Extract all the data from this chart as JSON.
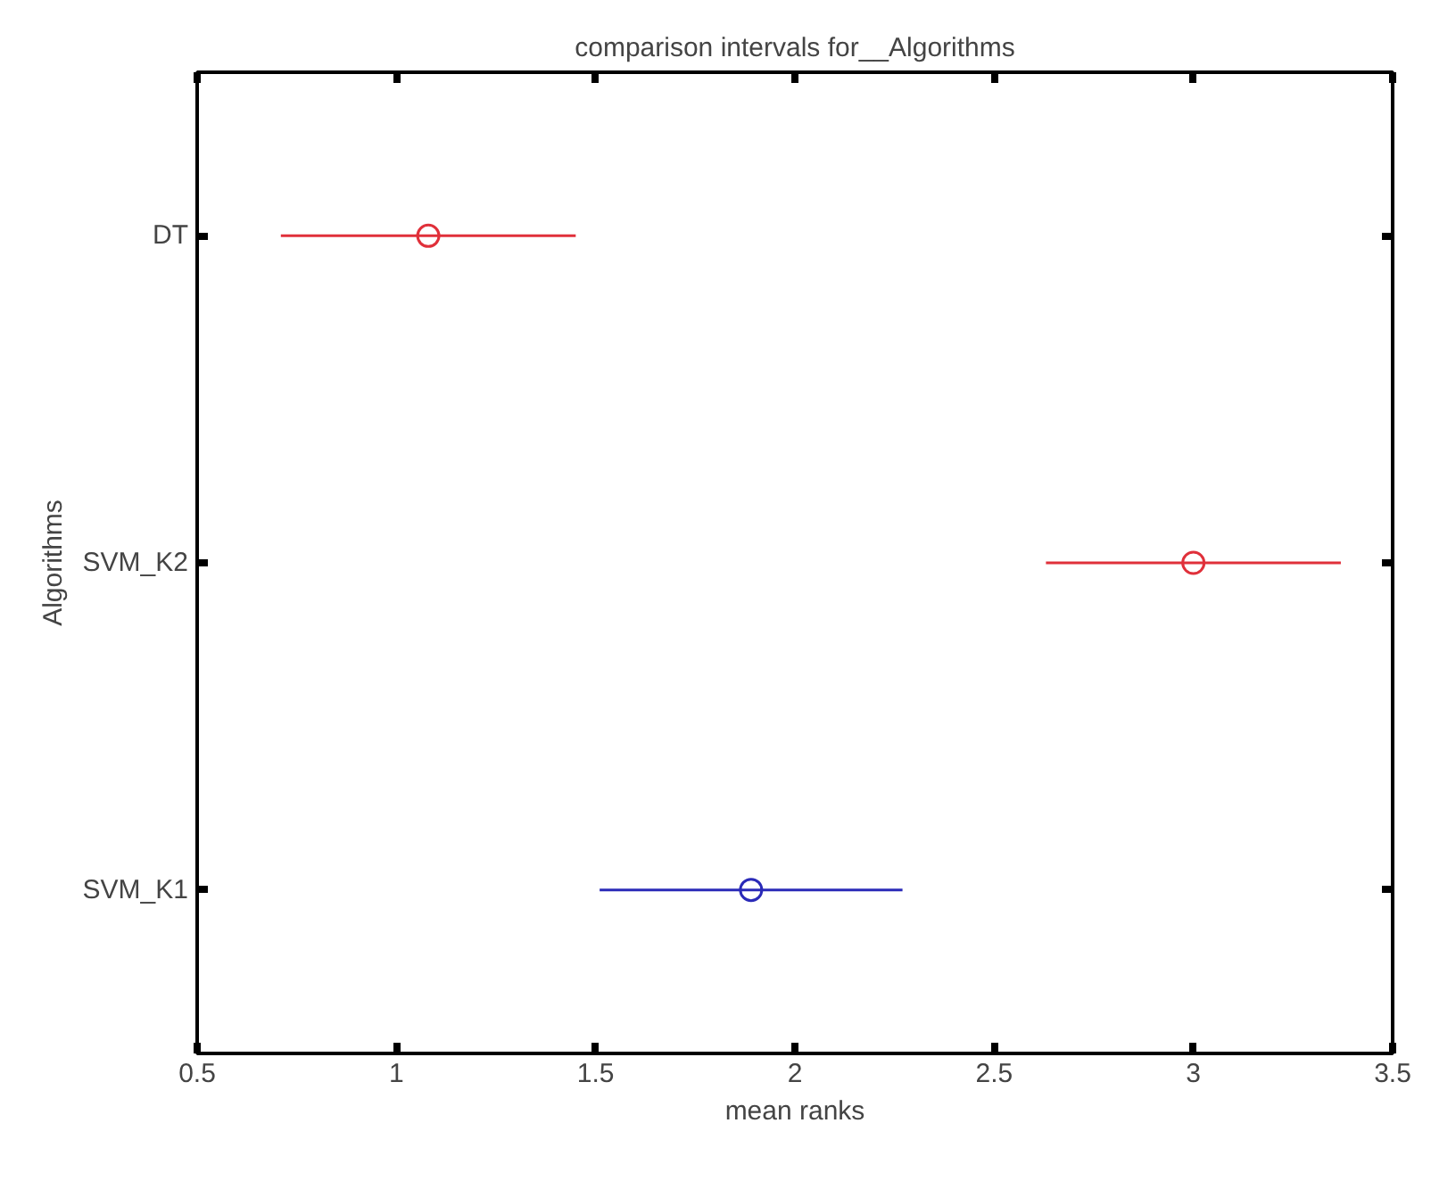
{
  "chart_data": {
    "type": "scatter",
    "title": "comparison intervals for__Algorithms",
    "xlabel": "mean ranks",
    "ylabel": "Algorithms",
    "orientation": "horizontal",
    "categories": [
      "DT",
      "SVM_K2",
      "SVM_K1"
    ],
    "values": [
      1.08,
      3.0,
      1.89
    ],
    "errors": [
      0.37,
      0.37,
      0.38
    ],
    "colors": [
      "#e0303a",
      "#e0303a",
      "#2a2ab8"
    ],
    "xlim": [
      0.5,
      3.5
    ],
    "xticks": [
      0.5,
      1,
      1.5,
      2,
      2.5,
      3,
      3.5
    ],
    "marker": "circle",
    "grid": false
  }
}
